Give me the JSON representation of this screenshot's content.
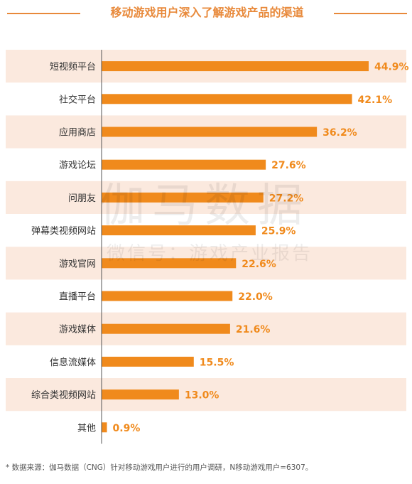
{
  "title": "移动游戏用户深入了解游戏产品的渠道",
  "watermark": {
    "brand": "伽马数据",
    "wechat": "微信号：游戏产业报告"
  },
  "footnote": "*  数据来源：伽马数据（CNG）针对移动游戏用户进行的用户调研，N移动游戏用户=6307。",
  "colors": {
    "accent": "#e8893a",
    "bar": "#f08a1c",
    "band": "#fbe9de",
    "label": "#333333"
  },
  "chart_data": {
    "type": "bar",
    "orientation": "horizontal",
    "categories": [
      "短视频平台",
      "社交平台",
      "应用商店",
      "游戏论坛",
      "问朋友",
      "弹幕类视频网站",
      "游戏官网",
      "直播平台",
      "游戏媒体",
      "信息流媒体",
      "综合类视频网站",
      "其他"
    ],
    "values": [
      44.9,
      42.1,
      36.2,
      27.6,
      27.2,
      25.9,
      22.6,
      22.0,
      21.6,
      15.5,
      13.0,
      0.9
    ],
    "value_labels": [
      "44.9%",
      "42.1%",
      "36.2%",
      "27.6%",
      "27.2%",
      "25.9%",
      "22.6%",
      "22.0%",
      "21.6%",
      "15.5%",
      "13.0%",
      "0.9%"
    ],
    "unit": "%",
    "xlim": [
      0,
      44.9
    ],
    "alternating_bands": true
  }
}
